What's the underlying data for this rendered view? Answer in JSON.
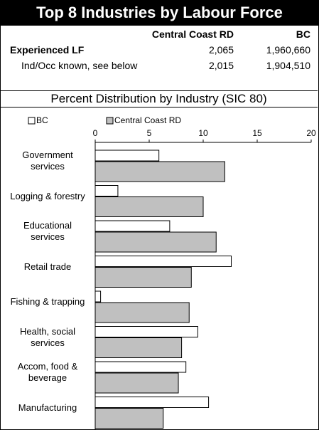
{
  "header": {
    "title": "Top 8 Industries by Labour Force"
  },
  "table": {
    "columns": [
      "Central Coast RD",
      "BC"
    ],
    "rows": [
      [
        "Experienced LF",
        "2,065",
        "1,960,660"
      ],
      [
        "Ind/Occ known, see below",
        "2,015",
        "1,904,510"
      ]
    ]
  },
  "section": {
    "title": "Percent Distribution by Industry (SIC 80)"
  },
  "chart_data": {
    "type": "bar",
    "orientation": "horizontal",
    "categories": [
      "Government services",
      "Logging & forestry",
      "Educational services",
      "Retail trade",
      "Fishing & trapping",
      "Health, social services",
      "Accom, food & beverage",
      "Manufacturing"
    ],
    "series": [
      {
        "name": "BC",
        "color": "#ffffff",
        "values": [
          5.9,
          2.1,
          6.9,
          12.6,
          0.5,
          9.5,
          8.4,
          10.5
        ]
      },
      {
        "name": "Central Coast RD",
        "color": "#c0c0c0",
        "values": [
          12.0,
          10.0,
          11.2,
          8.9,
          8.7,
          8.0,
          7.7,
          6.3
        ]
      }
    ],
    "xlim": [
      0,
      20
    ],
    "xticks": [
      0,
      5,
      10,
      15,
      20
    ]
  }
}
